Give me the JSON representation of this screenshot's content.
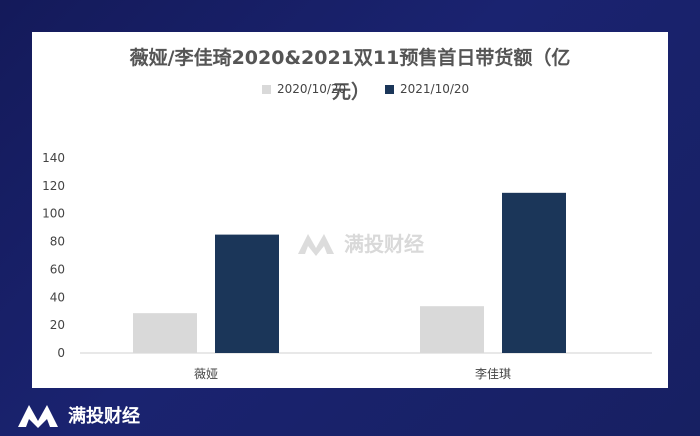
{
  "brand": {
    "name": "满投财经"
  },
  "colors": {
    "series_2020": "#d9d9d9",
    "series_2021": "#1b3659",
    "background": "#161e66"
  },
  "chart_data": {
    "type": "bar",
    "title": "薇娅/李佳琦2020&2021双11预售首日带货额（亿元）",
    "title_line1": "薇娅/李佳琦2020&2021双11预售首日带货额（亿",
    "title_line2": "元）",
    "categories": [
      "薇娅",
      "李佳琪"
    ],
    "series": [
      {
        "name": "2020/10/20",
        "values": [
          28.6,
          33.6
        ]
      },
      {
        "name": "2021/10/20",
        "values": [
          85,
          115
        ]
      }
    ],
    "yticks": [
      "0",
      "20",
      "40",
      "60",
      "80",
      "100",
      "120",
      "140"
    ],
    "ylim": [
      0,
      140
    ],
    "legend_position": "top",
    "grid": false
  }
}
